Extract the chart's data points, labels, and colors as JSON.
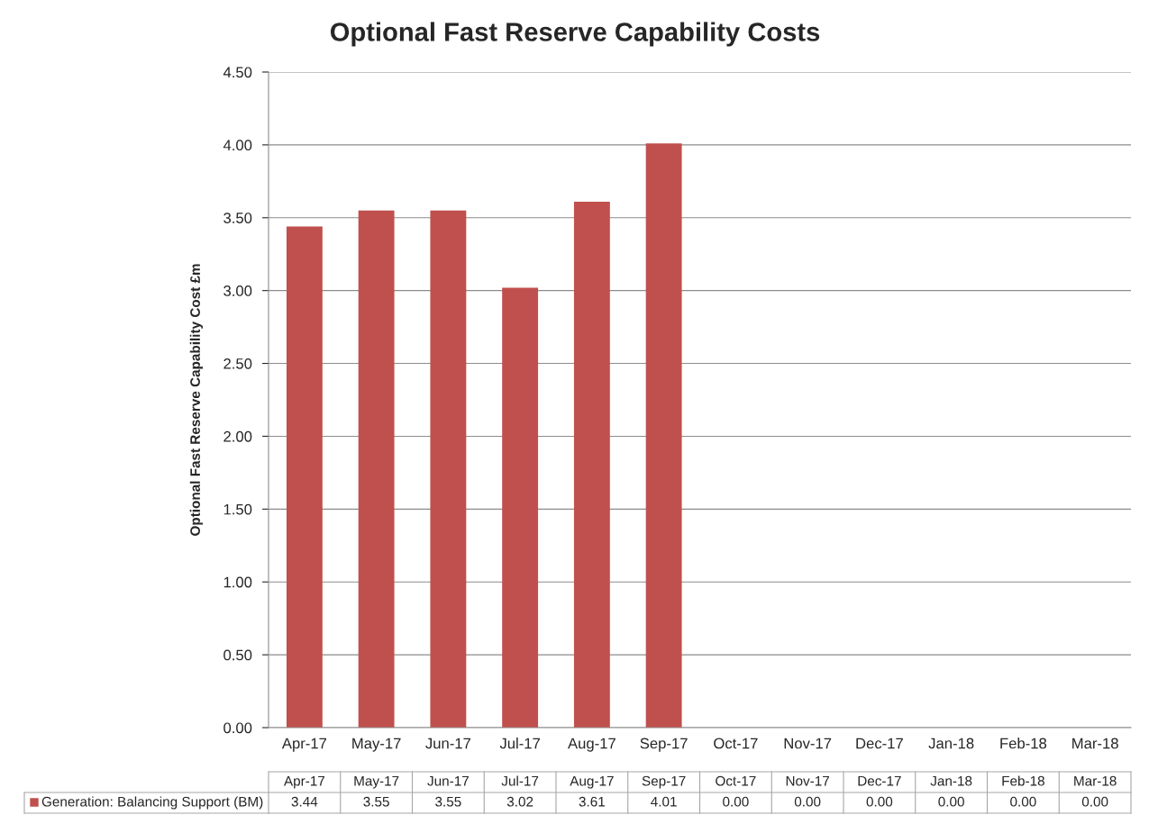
{
  "chart_data": {
    "type": "bar",
    "title": "Optional Fast Reserve Capability Costs",
    "ylabel": "Optional Fast Reserve Capability Cost £m",
    "categories": [
      "Apr-17",
      "May-17",
      "Jun-17",
      "Jul-17",
      "Aug-17",
      "Sep-17",
      "Oct-17",
      "Nov-17",
      "Dec-17",
      "Jan-18",
      "Feb-18",
      "Mar-18"
    ],
    "series": [
      {
        "name": "Generation: Balancing Support (BM)",
        "color": "#c0504d",
        "values": [
          3.44,
          3.55,
          3.55,
          3.02,
          3.61,
          4.01,
          0.0,
          0.0,
          0.0,
          0.0,
          0.0,
          0.0
        ],
        "value_labels": [
          "3.44",
          "3.55",
          "3.55",
          "3.02",
          "3.61",
          "4.01",
          "0.00",
          "0.00",
          "0.00",
          "0.00",
          "0.00",
          "0.00"
        ]
      }
    ],
    "ylim": [
      0,
      4.5
    ],
    "yticks": [
      {
        "value": 0,
        "label": "0.00"
      },
      {
        "value": 0.5,
        "label": "0.50"
      },
      {
        "value": 1,
        "label": "1.00"
      },
      {
        "value": 1.5,
        "label": "1.50"
      },
      {
        "value": 2,
        "label": "2.00"
      },
      {
        "value": 2.5,
        "label": "2.50"
      },
      {
        "value": 3,
        "label": "3.00"
      },
      {
        "value": 3.5,
        "label": "3.50"
      },
      {
        "value": 4,
        "label": "4.00"
      },
      {
        "value": 4.5,
        "label": "4.50"
      }
    ],
    "grid": "y"
  }
}
